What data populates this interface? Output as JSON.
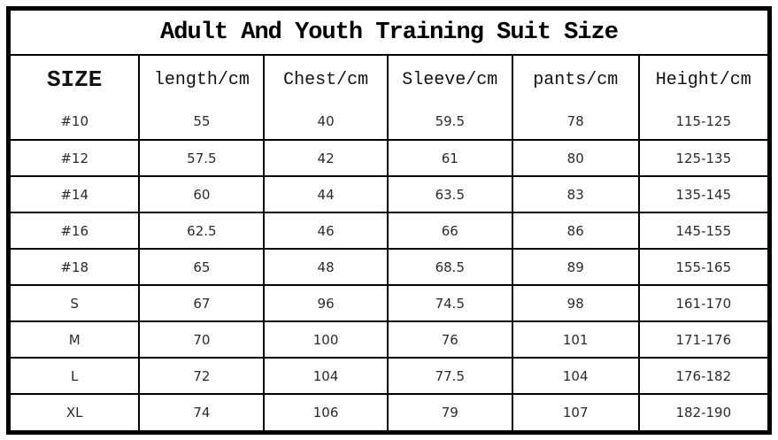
{
  "title": "Adult And Youth Training Suit Size",
  "table": {
    "columns": [
      "SIZE",
      "length/cm",
      "Chest/cm",
      "Sleeve/cm",
      "pants/cm",
      "Height/cm"
    ],
    "rows": [
      [
        "#10",
        "55",
        "40",
        "59.5",
        "78",
        "115-125"
      ],
      [
        "#12",
        "57.5",
        "42",
        "61",
        "80",
        "125-135"
      ],
      [
        "#14",
        "60",
        "44",
        "63.5",
        "83",
        "135-145"
      ],
      [
        "#16",
        "62.5",
        "46",
        "66",
        "86",
        "145-155"
      ],
      [
        "#18",
        "65",
        "48",
        "68.5",
        "89",
        "155-165"
      ],
      [
        "S",
        "67",
        "96",
        "74.5",
        "98",
        "161-170"
      ],
      [
        "M",
        "70",
        "100",
        "76",
        "101",
        "171-176"
      ],
      [
        "L",
        "72",
        "104",
        "77.5",
        "104",
        "176-182"
      ],
      [
        "XL",
        "74",
        "106",
        "79",
        "107",
        "182-190"
      ]
    ]
  },
  "colors": {
    "border": "#000000",
    "background": "#ffffff",
    "text": "#2b2b2b"
  }
}
